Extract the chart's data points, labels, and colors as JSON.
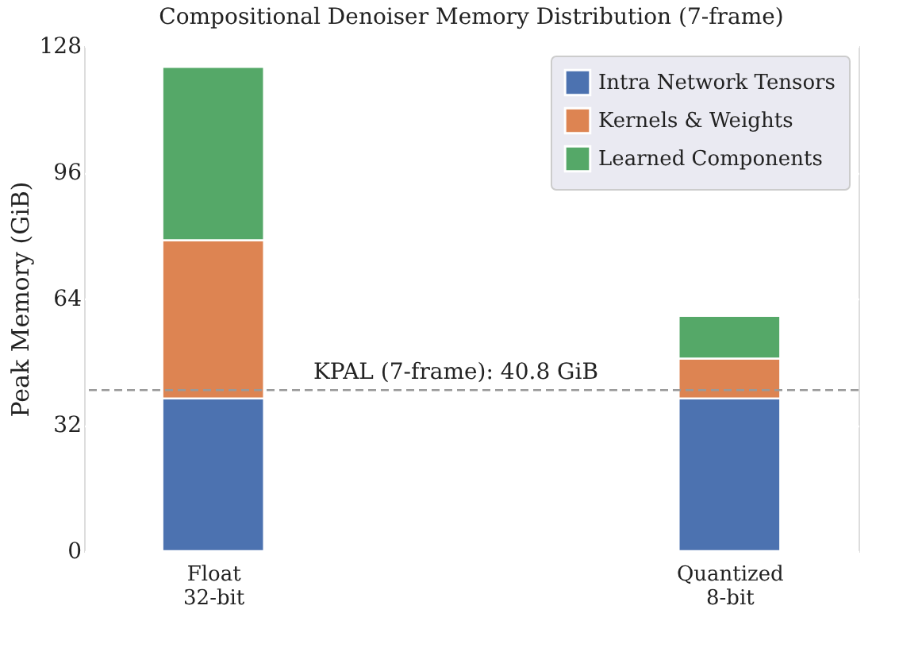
{
  "chart_data": {
    "type": "bar",
    "title": "Compositional Denoiser Memory Distribution (7-frame)",
    "ylabel": "Peak Memory (GiB)",
    "categories": [
      "Float\n32-bit",
      "Quantized\n8-bit"
    ],
    "stacked": true,
    "series": [
      {
        "name": "Intra Network Tensors",
        "color": "#4c72b0",
        "values": [
          38.7,
          38.7
        ]
      },
      {
        "name": "Kernels & Weights",
        "color": "#dd8452",
        "values": [
          40.1,
          10.1
        ]
      },
      {
        "name": "Learned Components",
        "color": "#55a868",
        "values": [
          43.9,
          10.8
        ]
      }
    ],
    "ylim": [
      0,
      128
    ],
    "yticks": [
      0,
      32,
      64,
      96,
      128
    ],
    "ref_lines": [
      {
        "axis": "y",
        "value": 40.8,
        "label": "KPAL (7-frame): 40.8 GiB",
        "color": "#999999",
        "line_style": "dashed"
      }
    ],
    "grid": "y",
    "legend": "top right"
  }
}
